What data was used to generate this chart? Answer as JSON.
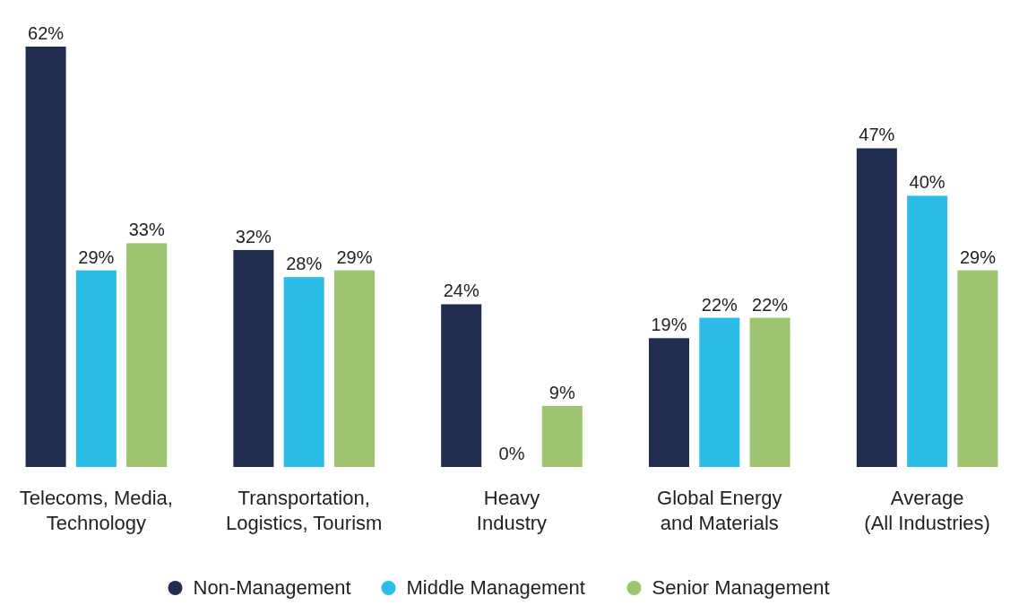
{
  "chart_data": {
    "type": "bar",
    "categories": [
      "Telecoms, Media,\nTechnology",
      "Transportation,\nLogistics, Tourism",
      "Heavy\nIndustry",
      "Global Energy\nand Materials",
      "Average\n(All Industries)"
    ],
    "series": [
      {
        "name": "Non-Management",
        "color": "#1f2d4e",
        "values": [
          62,
          32,
          24,
          19,
          47
        ],
        "value_labels": [
          "62%",
          "32%",
          "24%",
          "19%",
          "47%"
        ]
      },
      {
        "name": "Middle Management",
        "color": "#2bbde6",
        "values": [
          29,
          28,
          0,
          22,
          40
        ],
        "value_labels": [
          "29%",
          "28%",
          "0%",
          "22%",
          "40%"
        ]
      },
      {
        "name": "Senior Management",
        "color": "#9dc46e",
        "values": [
          33,
          29,
          9,
          22,
          29
        ],
        "value_labels": [
          "33%",
          "29%",
          "9%",
          "22%",
          "29%"
        ]
      }
    ],
    "legend": "bottom"
  }
}
